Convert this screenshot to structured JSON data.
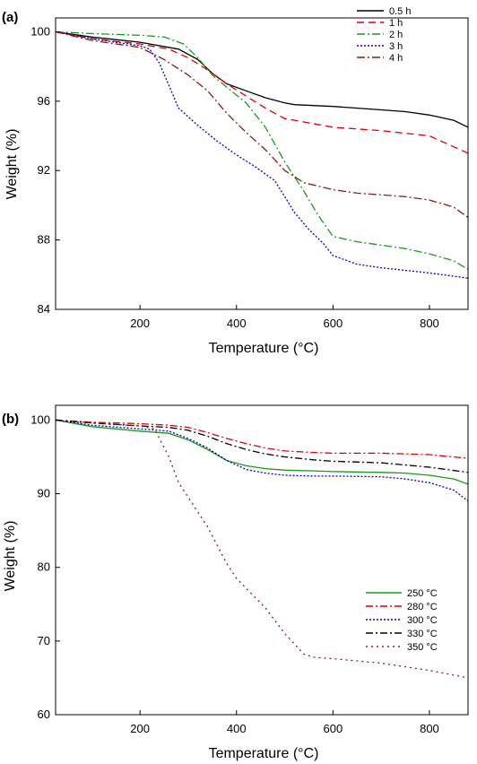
{
  "chart_data": [
    {
      "type": "line",
      "panel_label": "(a)",
      "xlabel": "Temperature (°C)",
      "ylabel": "Weight (%)",
      "xlim": [
        25,
        880
      ],
      "ylim": [
        84,
        100.8
      ],
      "xticks": [
        200,
        400,
        600,
        800
      ],
      "yticks": [
        84,
        88,
        92,
        96,
        100
      ],
      "legend_position": "top-right",
      "grid": false,
      "series": [
        {
          "name": "0.5 h",
          "color": "#000000",
          "dash": "",
          "x": [
            25,
            100,
            200,
            280,
            320,
            350,
            380,
            420,
            460,
            500,
            520,
            600,
            700,
            750,
            800,
            850,
            880
          ],
          "y": [
            100,
            99.7,
            99.4,
            99,
            98.4,
            97.6,
            97,
            96.6,
            96.2,
            95.9,
            95.8,
            95.7,
            95.5,
            95.4,
            95.2,
            94.9,
            94.5
          ]
        },
        {
          "name": "1 h",
          "color": "#e00000",
          "dash": "8,5",
          "x": [
            25,
            100,
            200,
            260,
            300,
            340,
            380,
            420,
            460,
            500,
            560,
            600,
            700,
            800,
            880
          ],
          "y": [
            100,
            99.6,
            99.3,
            99,
            98.5,
            97.8,
            97,
            96.3,
            95.6,
            95,
            94.7,
            94.5,
            94.3,
            94,
            93
          ]
        },
        {
          "name": "2 h",
          "color": "#1a9a1a",
          "dash": "9,3,2,3",
          "x": [
            25,
            100,
            200,
            250,
            290,
            320,
            350,
            380,
            420,
            460,
            500,
            540,
            570,
            600,
            650,
            700,
            750,
            800,
            850,
            880
          ],
          "y": [
            100,
            99.9,
            99.8,
            99.7,
            99.3,
            98.5,
            97.5,
            96.8,
            95.9,
            94.5,
            92.5,
            90.8,
            89.4,
            88.2,
            87.9,
            87.7,
            87.5,
            87.2,
            86.8,
            86.3
          ]
        },
        {
          "name": "3 h",
          "color": "#0000cc",
          "dash": "2,2",
          "x": [
            25,
            100,
            200,
            220,
            240,
            260,
            280,
            320,
            360,
            400,
            440,
            480,
            520,
            550,
            580,
            600,
            650,
            700,
            800,
            880
          ],
          "y": [
            100,
            99.6,
            99.2,
            99,
            98.2,
            96.9,
            95.6,
            94.6,
            93.7,
            92.9,
            92.2,
            91.4,
            89.6,
            88.6,
            87.8,
            87.1,
            86.6,
            86.4,
            86.1,
            85.8
          ]
        },
        {
          "name": "4 h",
          "color": "#8b1a1a",
          "dash": "9,3,2,3",
          "x": [
            25,
            100,
            200,
            250,
            300,
            340,
            380,
            420,
            460,
            500,
            540,
            600,
            650,
            700,
            750,
            800,
            850,
            880
          ],
          "y": [
            100,
            99.5,
            99.1,
            98.4,
            97.5,
            96.6,
            95.3,
            94.2,
            93.2,
            92,
            91.3,
            90.9,
            90.7,
            90.6,
            90.5,
            90.3,
            89.9,
            89.3
          ]
        }
      ]
    },
    {
      "type": "line",
      "panel_label": "(b)",
      "xlabel": "Temperature (°C)",
      "ylabel": "Weight (%)",
      "xlim": [
        25,
        880
      ],
      "ylim": [
        60,
        102
      ],
      "xticks": [
        200,
        400,
        600,
        800
      ],
      "yticks": [
        60,
        70,
        80,
        90,
        100
      ],
      "legend_position": "center-right",
      "grid": false,
      "series": [
        {
          "name": "250 °C",
          "color": "#1a9a1a",
          "dash": "",
          "x": [
            25,
            100,
            200,
            260,
            300,
            340,
            380,
            420,
            460,
            500,
            560,
            600,
            700,
            750,
            800,
            850,
            880
          ],
          "y": [
            100,
            99.1,
            98.5,
            98.2,
            97.3,
            96,
            94.5,
            93.8,
            93.4,
            93.2,
            93.1,
            93,
            92.9,
            92.8,
            92.5,
            92,
            91.3
          ]
        },
        {
          "name": "280 °C",
          "color": "#e00000",
          "dash": "8,3,2,3",
          "x": [
            25,
            100,
            200,
            260,
            300,
            340,
            380,
            420,
            460,
            500,
            560,
            600,
            700,
            800,
            880
          ],
          "y": [
            100,
            99.7,
            99.5,
            99.3,
            99,
            98.3,
            97.5,
            96.8,
            96.2,
            95.8,
            95.6,
            95.5,
            95.5,
            95.3,
            94.8
          ]
        },
        {
          "name": "300 °C",
          "color": "#0000cc",
          "dash": "2,2",
          "x": [
            25,
            100,
            200,
            260,
            300,
            340,
            380,
            420,
            460,
            500,
            560,
            600,
            700,
            750,
            800,
            850,
            880
          ],
          "y": [
            100,
            99.3,
            98.8,
            98.5,
            97.5,
            96.2,
            94.5,
            93.3,
            92.8,
            92.5,
            92.4,
            92.4,
            92.3,
            92,
            91.5,
            90.5,
            89
          ]
        },
        {
          "name": "330 °C",
          "color": "#000000",
          "dash": "8,3,2,3",
          "x": [
            25,
            100,
            200,
            260,
            300,
            340,
            380,
            420,
            460,
            500,
            560,
            600,
            700,
            800,
            880
          ],
          "y": [
            100,
            99.6,
            99.2,
            99,
            98.6,
            97.8,
            96.8,
            96,
            95.4,
            95,
            94.6,
            94.4,
            94.2,
            93.6,
            92.9
          ]
        },
        {
          "name": "350 °C",
          "color": "#8b1a1a",
          "dash": "2,4",
          "x": [
            25,
            100,
            200,
            230,
            260,
            280,
            300,
            340,
            380,
            400,
            430,
            460,
            500,
            540,
            560,
            600,
            700,
            800,
            880
          ],
          "y": [
            100,
            99.6,
            99.2,
            98.8,
            95,
            91.5,
            89.5,
            85.5,
            80.5,
            78.5,
            76.5,
            74.5,
            71,
            68.2,
            67.8,
            67.6,
            67,
            66,
            65
          ]
        }
      ]
    }
  ]
}
